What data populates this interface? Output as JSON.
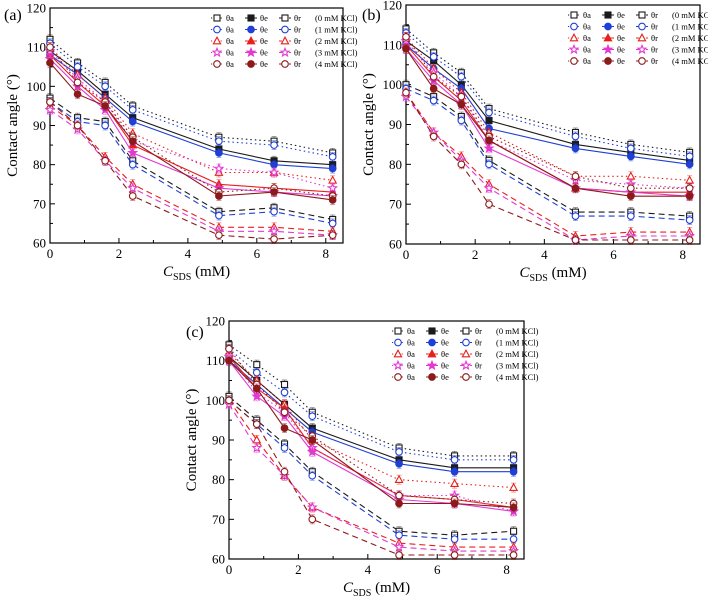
{
  "chart_data": [
    {
      "type": "line",
      "panel_label": "(a)",
      "xlabel_main": "C",
      "xlabel_sub": "SDS",
      "xlabel_unit": " (mM)",
      "ylabel": "Contact angle (°)",
      "xlim": [
        0,
        8.5
      ],
      "ylim": [
        60,
        120
      ],
      "xticks": [
        0,
        2,
        4,
        6,
        8
      ],
      "yticks": [
        60,
        70,
        80,
        90,
        100,
        110,
        120
      ],
      "x": [
        0,
        0.8,
        1.6,
        2.4,
        4.9,
        6.5,
        8.2
      ],
      "legend_position": "top-right",
      "series": [
        {
          "name": "θa (0 mM KCl)",
          "kcl": "0 mM KCl",
          "kind": "advancing",
          "color": "#1a1a1a",
          "marker": "square",
          "values": [
            112,
            106,
            101,
            95,
            87,
            86,
            83
          ]
        },
        {
          "name": "θe (0 mM KCl)",
          "kcl": "0 mM KCl",
          "kind": "equilibrium",
          "color": "#1a1a1a",
          "marker": "square",
          "values": [
            109,
            104,
            98,
            92,
            84,
            81,
            80
          ]
        },
        {
          "name": "θr (0 mM KCl)",
          "kcl": "0 mM KCl",
          "kind": "receding",
          "color": "#1a1a1a",
          "marker": "square",
          "values": [
            97,
            92,
            91,
            81,
            68,
            69,
            66
          ]
        },
        {
          "name": "θa (1 mM KCl)",
          "kcl": "1 mM KCl",
          "kind": "advancing",
          "color": "#1f3fd6",
          "marker": "circle",
          "values": [
            111,
            105,
            100,
            94,
            86,
            85,
            82
          ]
        },
        {
          "name": "θe (1 mM KCl)",
          "kcl": "1 mM KCl",
          "kind": "equilibrium",
          "color": "#1f3fd6",
          "marker": "circle",
          "values": [
            108,
            103,
            97,
            91,
            83,
            80,
            79
          ]
        },
        {
          "name": "θr (1 mM KCl)",
          "kcl": "1 mM KCl",
          "kind": "receding",
          "color": "#1f3fd6",
          "marker": "circle",
          "values": [
            96,
            91,
            90,
            80,
            67,
            68,
            65
          ]
        },
        {
          "name": "θa (2 mM KCl)",
          "kcl": "2 mM KCl",
          "kind": "advancing",
          "color": "#e8201c",
          "marker": "triangle",
          "values": [
            110,
            103,
            97,
            88,
            78,
            78,
            76
          ]
        },
        {
          "name": "θe (2 mM KCl)",
          "kcl": "2 mM KCl",
          "kind": "equilibrium",
          "color": "#e8201c",
          "marker": "triangle",
          "values": [
            108,
            101,
            95,
            85,
            75,
            74,
            73
          ]
        },
        {
          "name": "θr (2 mM KCl)",
          "kcl": "2 mM KCl",
          "kind": "receding",
          "color": "#e8201c",
          "marker": "triangle",
          "values": [
            95,
            90,
            82,
            75,
            64,
            64,
            63
          ]
        },
        {
          "name": "θa (3 mM KCl)",
          "kcl": "3 mM KCl",
          "kind": "advancing",
          "color": "#e23ad1",
          "marker": "star",
          "values": [
            109,
            102,
            96,
            86,
            79,
            78,
            74
          ]
        },
        {
          "name": "θe (3 mM KCl)",
          "kcl": "3 mM KCl",
          "kind": "equilibrium",
          "color": "#e23ad1",
          "marker": "star",
          "values": [
            107,
            100,
            94,
            83,
            74,
            73,
            72
          ]
        },
        {
          "name": "θr (3 mM KCl)",
          "kcl": "3 mM KCl",
          "kind": "receding",
          "color": "#e23ad1",
          "marker": "star",
          "values": [
            94,
            89,
            81,
            74,
            63,
            63,
            62
          ]
        },
        {
          "name": "θa (4 mM KCl)",
          "kcl": "4 mM KCl",
          "kind": "advancing",
          "color": "#8b1a1a",
          "marker": "circle",
          "values": [
            110,
            101,
            96,
            87,
            73,
            74,
            72
          ]
        },
        {
          "name": "θe (4 mM KCl)",
          "kcl": "4 mM KCl",
          "kind": "equilibrium",
          "color": "#8b1a1a",
          "marker": "circle",
          "values": [
            106,
            98,
            95,
            86,
            72,
            73,
            71
          ]
        },
        {
          "name": "θr (4 mM KCl)",
          "kcl": "4 mM KCl",
          "kind": "receding",
          "color": "#8b1a1a",
          "marker": "circle",
          "values": [
            96,
            90,
            81,
            72,
            62,
            61,
            62
          ]
        }
      ]
    },
    {
      "type": "line",
      "panel_label": "(b)",
      "xlabel_main": "C",
      "xlabel_sub": "SDS",
      "xlabel_unit": " (mM)",
      "ylabel": "Contact angle (°)",
      "xlim": [
        0,
        8.5
      ],
      "ylim": [
        60,
        120
      ],
      "xticks": [
        0,
        2,
        4,
        6,
        8
      ],
      "yticks": [
        60,
        70,
        80,
        90,
        100,
        110,
        120
      ],
      "x": [
        0,
        0.8,
        1.6,
        2.4,
        4.9,
        6.5,
        8.2
      ],
      "legend_position": "top-right",
      "series": [
        {
          "name": "θa (0 mM KCl)",
          "kcl": "0 mM KCl",
          "kind": "advancing",
          "color": "#1a1a1a",
          "marker": "square",
          "values": [
            114,
            108,
            103,
            94,
            88,
            85,
            83
          ]
        },
        {
          "name": "θe (0 mM KCl)",
          "kcl": "0 mM KCl",
          "kind": "equilibrium",
          "color": "#1a1a1a",
          "marker": "square",
          "values": [
            111,
            106,
            100,
            91,
            85,
            83,
            81
          ]
        },
        {
          "name": "θr (0 mM KCl)",
          "kcl": "0 mM KCl",
          "kind": "receding",
          "color": "#1a1a1a",
          "marker": "square",
          "values": [
            100,
            97,
            92,
            81,
            68,
            68,
            67
          ]
        },
        {
          "name": "θa (1 mM KCl)",
          "kcl": "1 mM KCl",
          "kind": "advancing",
          "color": "#1f3fd6",
          "marker": "circle",
          "values": [
            113,
            107,
            102,
            93,
            87,
            84,
            82
          ]
        },
        {
          "name": "θe (1 mM KCl)",
          "kcl": "1 mM KCl",
          "kind": "equilibrium",
          "color": "#1f3fd6",
          "marker": "circle",
          "values": [
            110,
            104,
            99,
            89,
            84,
            82,
            80
          ]
        },
        {
          "name": "θr (1 mM KCl)",
          "kcl": "1 mM KCl",
          "kind": "receding",
          "color": "#1f3fd6",
          "marker": "circle",
          "values": [
            99,
            96,
            91,
            80,
            67,
            67,
            66
          ]
        },
        {
          "name": "θa (2 mM KCl)",
          "kcl": "2 mM KCl",
          "kind": "advancing",
          "color": "#e8201c",
          "marker": "triangle",
          "values": [
            112,
            104,
            98,
            88,
            77,
            77,
            76
          ]
        },
        {
          "name": "θe (2 mM KCl)",
          "kcl": "2 mM KCl",
          "kind": "equilibrium",
          "color": "#e8201c",
          "marker": "triangle",
          "values": [
            110,
            102,
            96,
            86,
            74,
            73,
            73
          ]
        },
        {
          "name": "θr (2 mM KCl)",
          "kcl": "2 mM KCl",
          "kind": "receding",
          "color": "#e8201c",
          "marker": "triangle",
          "values": [
            98,
            88,
            82,
            75,
            62,
            63,
            63
          ]
        },
        {
          "name": "θa (3 mM KCl)",
          "kcl": "3 mM KCl",
          "kind": "advancing",
          "color": "#e23ad1",
          "marker": "star",
          "values": [
            111,
            103,
            97,
            86,
            76,
            75,
            74
          ]
        },
        {
          "name": "θe (3 mM KCl)",
          "kcl": "3 mM KCl",
          "kind": "equilibrium",
          "color": "#e23ad1",
          "marker": "star",
          "values": [
            109,
            101,
            95,
            84,
            74,
            73,
            72
          ]
        },
        {
          "name": "θr (3 mM KCl)",
          "kcl": "3 mM KCl",
          "kind": "receding",
          "color": "#e23ad1",
          "marker": "star",
          "values": [
            97,
            88,
            81,
            74,
            61,
            62,
            62
          ]
        },
        {
          "name": "θa (4 mM KCl)",
          "kcl": "4 mM KCl",
          "kind": "advancing",
          "color": "#8b1a1a",
          "marker": "circle",
          "values": [
            112,
            102,
            97,
            87,
            77,
            74,
            74
          ]
        },
        {
          "name": "θe (4 mM KCl)",
          "kcl": "4 mM KCl",
          "kind": "equilibrium",
          "color": "#8b1a1a",
          "marker": "circle",
          "values": [
            109,
            99,
            95,
            86,
            74,
            72,
            72
          ]
        },
        {
          "name": "θr (4 mM KCl)",
          "kcl": "4 mM KCl",
          "kind": "receding",
          "color": "#8b1a1a",
          "marker": "circle",
          "values": [
            98,
            87,
            80,
            70,
            61,
            61,
            61
          ]
        }
      ]
    },
    {
      "type": "line",
      "panel_label": "(c)",
      "xlabel_main": "C",
      "xlabel_sub": "SDS",
      "xlabel_unit": " (mM)",
      "ylabel": "Contact angle (°)",
      "xlim": [
        0,
        8.5
      ],
      "ylim": [
        60,
        120
      ],
      "xticks": [
        0,
        2,
        4,
        6,
        8
      ],
      "yticks": [
        60,
        70,
        80,
        90,
        100,
        110,
        120
      ],
      "x": [
        0,
        0.8,
        1.6,
        2.4,
        4.9,
        6.5,
        8.2
      ],
      "legend_position": "top-right",
      "series": [
        {
          "name": "θa (0 mM KCl)",
          "kcl": "0 mM KCl",
          "kind": "advancing",
          "color": "#1a1a1a",
          "marker": "square",
          "values": [
            114,
            109,
            104,
            97,
            88,
            86,
            86
          ]
        },
        {
          "name": "θe (0 mM KCl)",
          "kcl": "0 mM KCl",
          "kind": "equilibrium",
          "color": "#1a1a1a",
          "marker": "square",
          "values": [
            111,
            105,
            99,
            93,
            85,
            83,
            83
          ]
        },
        {
          "name": "θr (0 mM KCl)",
          "kcl": "0 mM KCl",
          "kind": "receding",
          "color": "#1a1a1a",
          "marker": "square",
          "values": [
            101,
            95,
            89,
            82,
            67,
            66,
            67
          ]
        },
        {
          "name": "θa (1 mM KCl)",
          "kcl": "1 mM KCl",
          "kind": "advancing",
          "color": "#1f3fd6",
          "marker": "circle",
          "values": [
            113,
            107,
            102,
            96,
            87,
            85,
            85
          ]
        },
        {
          "name": "θe (1 mM KCl)",
          "kcl": "1 mM KCl",
          "kind": "equilibrium",
          "color": "#1f3fd6",
          "marker": "circle",
          "values": [
            110,
            104,
            98,
            92,
            84,
            82,
            82
          ]
        },
        {
          "name": "θr (1 mM KCl)",
          "kcl": "1 mM KCl",
          "kind": "receding",
          "color": "#1f3fd6",
          "marker": "circle",
          "values": [
            100,
            94,
            88,
            81,
            66,
            65,
            65
          ]
        },
        {
          "name": "θa (2 mM KCl)",
          "kcl": "2 mM KCl",
          "kind": "advancing",
          "color": "#e8201c",
          "marker": "triangle",
          "values": [
            112,
            105,
            99,
            90,
            80,
            79,
            78
          ]
        },
        {
          "name": "θe (2 mM KCl)",
          "kcl": "2 mM KCl",
          "kind": "equilibrium",
          "color": "#e8201c",
          "marker": "triangle",
          "values": [
            111,
            103,
            98,
            88,
            76,
            75,
            73
          ]
        },
        {
          "name": "θr (2 mM KCl)",
          "kcl": "2 mM KCl",
          "kind": "receding",
          "color": "#e8201c",
          "marker": "triangle",
          "values": [
            100,
            90,
            81,
            73,
            64,
            63,
            63
          ]
        },
        {
          "name": "θa (3 mM KCl)",
          "kcl": "3 mM KCl",
          "kind": "advancing",
          "color": "#e23ad1",
          "marker": "star",
          "values": [
            111,
            102,
            97,
            88,
            76,
            76,
            72
          ]
        },
        {
          "name": "θe (3 mM KCl)",
          "kcl": "3 mM KCl",
          "kind": "equilibrium",
          "color": "#e23ad1",
          "marker": "star",
          "values": [
            110,
            101,
            96,
            87,
            75,
            74,
            72
          ]
        },
        {
          "name": "θr (3 mM KCl)",
          "kcl": "3 mM KCl",
          "kind": "receding",
          "color": "#e23ad1",
          "marker": "star",
          "values": [
            99,
            88,
            81,
            73,
            63,
            62,
            62
          ]
        },
        {
          "name": "θa (4 mM KCl)",
          "kcl": "4 mM KCl",
          "kind": "advancing",
          "color": "#8b1a1a",
          "marker": "circle",
          "values": [
            113,
            104,
            97,
            91,
            76,
            75,
            74
          ]
        },
        {
          "name": "θe (4 mM KCl)",
          "kcl": "4 mM KCl",
          "kind": "equilibrium",
          "color": "#8b1a1a",
          "marker": "circle",
          "values": [
            110,
            103,
            93,
            90,
            74,
            74,
            73
          ]
        },
        {
          "name": "θr (4 mM KCl)",
          "kcl": "4 mM KCl",
          "kind": "receding",
          "color": "#8b1a1a",
          "marker": "circle",
          "values": [
            100,
            94,
            82,
            70,
            61,
            61,
            61
          ]
        }
      ]
    }
  ],
  "legend": {
    "symbols": [
      "θa",
      "θe",
      "θr"
    ],
    "rows": [
      "(0 mM KCl)",
      "(1 mM KCl)",
      "(2 mM KCl)",
      "(3 mM KCl)",
      "(4 mM KCl)"
    ]
  }
}
